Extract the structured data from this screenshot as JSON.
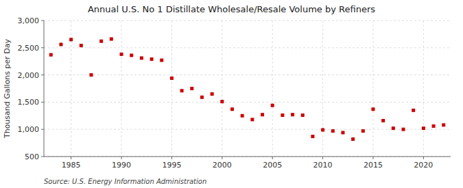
{
  "chart_data": {
    "type": "scatter",
    "title": "Annual U.S. No 1 Distillate Wholesale/Resale Volume by Refiners",
    "y_label": "Thousand Gallons per Day",
    "annotations": [
      "Source: U.S. Energy Information Administration"
    ],
    "x": [
      1983,
      1984,
      1985,
      1986,
      1987,
      1988,
      1989,
      1990,
      1991,
      1992,
      1993,
      1994,
      1995,
      1996,
      1997,
      1998,
      1999,
      2000,
      2001,
      2002,
      2003,
      2004,
      2005,
      2006,
      2007,
      2008,
      2009,
      2010,
      2011,
      2012,
      2013,
      2014,
      2015,
      2016,
      2017,
      2018,
      2019,
      2020,
      2021,
      2022
    ],
    "values": [
      2370,
      2560,
      2650,
      2540,
      2000,
      2620,
      2660,
      2380,
      2360,
      2310,
      2290,
      2270,
      1940,
      1710,
      1750,
      1590,
      1650,
      1510,
      1370,
      1250,
      1180,
      1270,
      1440,
      1260,
      1270,
      1260,
      870,
      990,
      970,
      940,
      820,
      970,
      1370,
      1160,
      1020,
      1000,
      1350,
      1020,
      1060,
      1080
    ],
    "color": "#cc0000",
    "marker": "square",
    "xlim": [
      1982.3,
      2022.7
    ],
    "ylim": [
      500,
      3000
    ],
    "xticks": [
      1985,
      1990,
      1995,
      2000,
      2005,
      2010,
      2015,
      2020
    ],
    "yticks": [
      500,
      {
        "value": 1000,
        "label": "1,000"
      },
      {
        "value": 1500,
        "label": "1,500"
      },
      {
        "value": 2000,
        "label": "2,000"
      },
      {
        "value": 2500,
        "label": "2,500"
      },
      {
        "value": 3000,
        "label": "3,000"
      }
    ],
    "grid": true
  }
}
